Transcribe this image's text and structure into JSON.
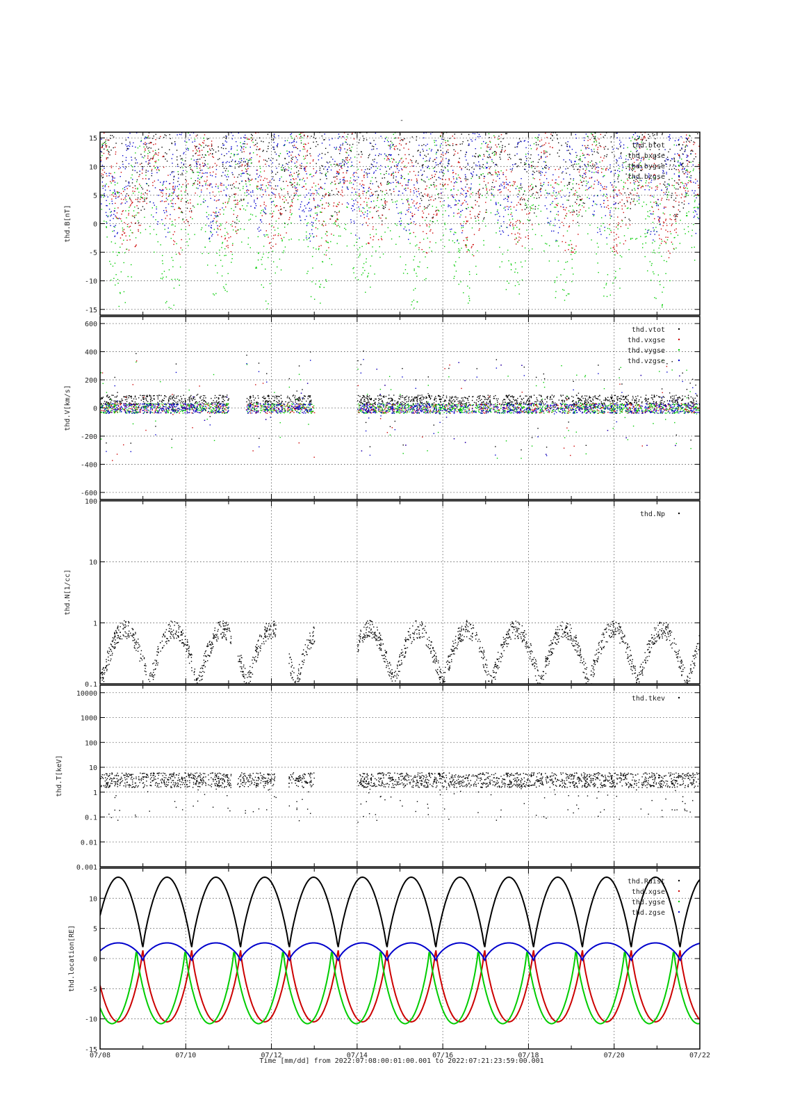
{
  "figure": {
    "title": "-",
    "xlabel": "Time [mm/dd]  from 2022:07:08:00:01:00.001  to  2022:07:21:23:59:00.001",
    "x_tick_labels": [
      "07/08",
      "07/10",
      "07/12",
      "07/14",
      "07/16",
      "07/18",
      "07/20",
      "07/22"
    ]
  },
  "colors": {
    "black": "#000000",
    "red": "#cc0000",
    "green": "#00cc00",
    "blue": "#0000cc",
    "grid": "#555555"
  },
  "chart_data": [
    {
      "type": "scatter",
      "ylabel": "thd.B[nT]",
      "xlim": [
        "07/08",
        "07/22"
      ],
      "ylim": [
        -16,
        16
      ],
      "yticks": [
        -15,
        -10,
        -5,
        0,
        5,
        10,
        15
      ],
      "ytick_labels": [
        "-15",
        "-10",
        "-5",
        "0",
        "5",
        "10",
        "15"
      ],
      "legend_position": "top-right",
      "series": [
        {
          "name": "thd.btot",
          "color": "black"
        },
        {
          "name": "thd.bxgse",
          "color": "red"
        },
        {
          "name": "thd.bygse",
          "color": "green"
        },
        {
          "name": "thd.bzgse",
          "color": "blue"
        }
      ]
    },
    {
      "type": "scatter",
      "ylabel": "thd.V[km/s]",
      "xlim": [
        "07/08",
        "07/22"
      ],
      "ylim": [
        -650,
        650
      ],
      "yticks": [
        -600,
        -400,
        -200,
        0,
        200,
        400,
        600
      ],
      "ytick_labels": [
        "-600",
        "-400",
        "-200",
        "0",
        "200",
        "400",
        "600"
      ],
      "legend_position": "top-right",
      "series": [
        {
          "name": "thd.vtot",
          "color": "black"
        },
        {
          "name": "thd.vxgse",
          "color": "red"
        },
        {
          "name": "thd.vygse",
          "color": "green"
        },
        {
          "name": "thd.vzgse",
          "color": "blue"
        }
      ]
    },
    {
      "type": "scatter",
      "ylabel": "thd.N[1/cc]",
      "xlim": [
        "07/08",
        "07/22"
      ],
      "ylim": [
        0.1,
        100
      ],
      "log_scale_y": true,
      "yticks": [
        0.1,
        1,
        10,
        100
      ],
      "ytick_labels": [
        "0.1",
        "1",
        "10",
        "100"
      ],
      "legend_position": "top-right",
      "series": [
        {
          "name": "thd.Np",
          "color": "black"
        }
      ]
    },
    {
      "type": "scatter",
      "ylabel": "thd.T[keV]",
      "xlim": [
        "07/08",
        "07/22"
      ],
      "ylim": [
        0.001,
        20000
      ],
      "log_scale_y": true,
      "yticks": [
        0.001,
        0.01,
        0.1,
        1,
        10,
        100,
        1000,
        10000
      ],
      "ytick_labels": [
        "0.001",
        "0.01",
        "0.1",
        "1",
        "10",
        "100",
        "1000",
        "10000"
      ],
      "legend_position": "top-right",
      "series": [
        {
          "name": "thd.tkev",
          "color": "black"
        }
      ]
    },
    {
      "type": "line",
      "ylabel": "thd.location[RE]",
      "xlim": [
        "07/08",
        "07/22"
      ],
      "ylim": [
        -15,
        15
      ],
      "yticks": [
        -15,
        -10,
        -5,
        0,
        5,
        10
      ],
      "ytick_labels": [
        "-15",
        "-10",
        "-5",
        "0",
        "5",
        "10"
      ],
      "legend_position": "top-right",
      "orbit_period_days": 1.14,
      "series": [
        {
          "name": "thd.Rdist",
          "color": "black",
          "min": 1.5,
          "max": 13.5
        },
        {
          "name": "thd.xgse",
          "color": "red",
          "min": -10.5,
          "max": 2
        },
        {
          "name": "thd.ygse",
          "color": "green",
          "min": -10.8,
          "max": 2
        },
        {
          "name": "thd.zgse",
          "color": "blue",
          "min": -0.5,
          "max": 2.6
        }
      ]
    }
  ]
}
